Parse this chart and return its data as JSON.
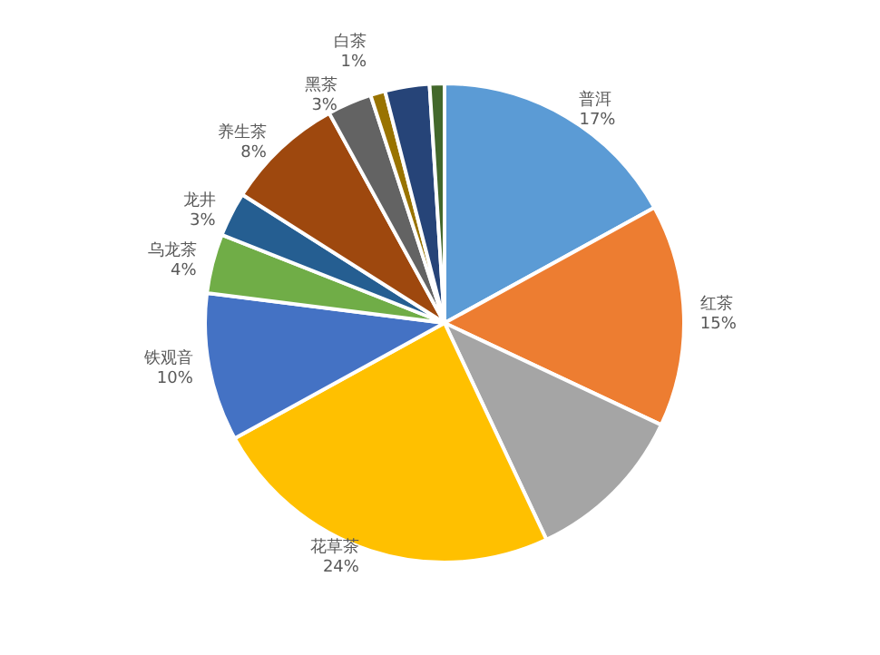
{
  "chart_data": {
    "type": "pie",
    "categories": [
      "普洱",
      "红茶",
      null,
      "花草茶",
      "铁观音",
      "乌龙茶",
      "龙井",
      "养生茶",
      "黑茶",
      "白茶",
      null,
      null
    ],
    "values": [
      17,
      15,
      11,
      24,
      10,
      4,
      3,
      8,
      3,
      1,
      3,
      1
    ],
    "value_labels": [
      "17%",
      "15%",
      null,
      "24%",
      "10%",
      "4%",
      "3%",
      "8%",
      "3%",
      "1%",
      null,
      null
    ],
    "colors": [
      "#5b9bd5",
      "#ed7d31",
      "#a5a5a5",
      "#ffc000",
      "#4472c4",
      "#70ad47",
      "#255e91",
      "#9e480e",
      "#636363",
      "#997300",
      "#264478",
      "#43682b"
    ],
    "legend": false
  }
}
